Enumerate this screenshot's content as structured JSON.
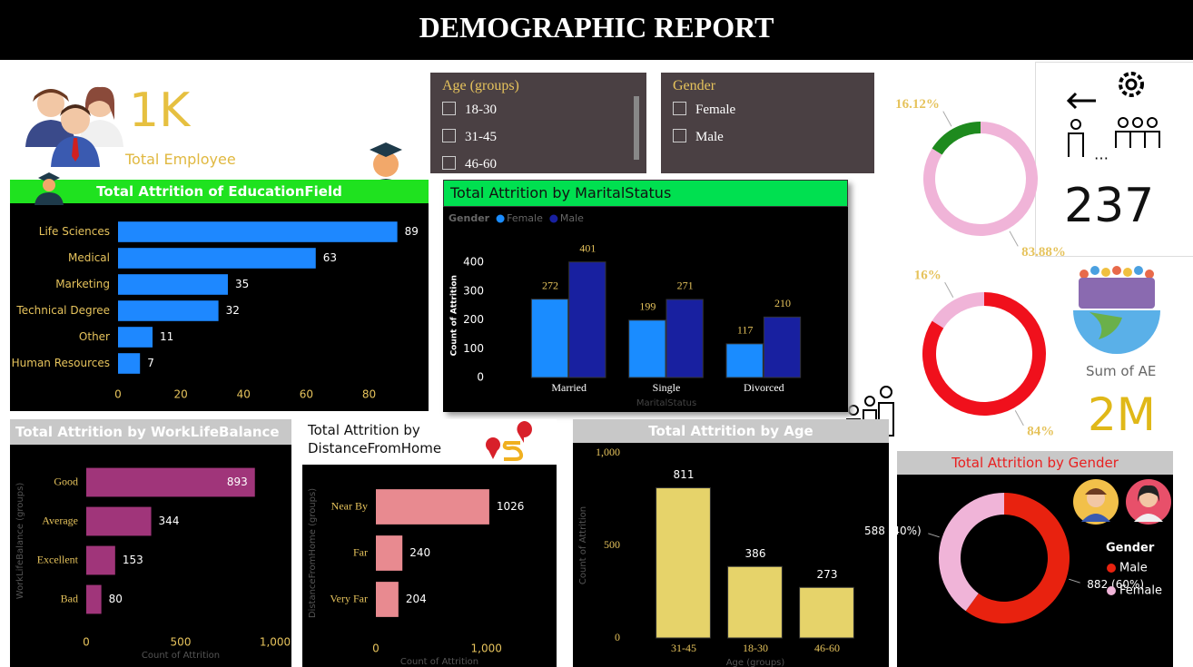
{
  "header": {
    "title": "DEMOGRAPHIC REPORT"
  },
  "kpis": [
    {
      "value": "1K",
      "label": "Total Employee"
    },
    {
      "value": "237"
    },
    {
      "value": "2M",
      "label": "Sum of AE"
    }
  ],
  "slicers": [
    {
      "title": "Age (groups)",
      "items": [
        "18-30",
        "31-45",
        "46-60"
      ]
    },
    {
      "title": "Gender",
      "items": [
        "Female",
        "Male"
      ]
    }
  ],
  "chart_data": [
    {
      "type": "bar",
      "orientation": "horizontal",
      "title": "Total Attrition of EducationField",
      "categories": [
        "Life Sciences",
        "Medical",
        "Marketing",
        "Technical Degree",
        "Other",
        "Human Resources"
      ],
      "values": [
        89,
        63,
        35,
        32,
        11,
        7
      ],
      "color": "#1e88ff",
      "xlim": [
        0,
        92
      ],
      "xticks": [
        0,
        20,
        40,
        60,
        80
      ]
    },
    {
      "type": "bar",
      "title": "Total Attrition by MaritalStatus",
      "legend_title": "Gender",
      "categories": [
        "Married",
        "Single",
        "Divorced"
      ],
      "series": [
        {
          "name": "Female",
          "color": "#1a8cff",
          "values": [
            272,
            199,
            117
          ]
        },
        {
          "name": "Male",
          "color": "#1820a0",
          "values": [
            401,
            271,
            210
          ]
        }
      ],
      "ylim": [
        0,
        430
      ],
      "yticks": [
        0,
        100,
        200,
        300,
        400
      ],
      "y_label": "Count of Attrition",
      "x_label": "MaritalStatus"
    },
    {
      "type": "bar",
      "orientation": "horizontal",
      "title": "Total Attrition by WorkLifeBalance",
      "categories": [
        "Good",
        "Average",
        "Excellent",
        "Bad"
      ],
      "values": [
        893,
        344,
        153,
        80
      ],
      "color": "#a0357a",
      "xlim": [
        0,
        1000
      ],
      "xticks": [
        0,
        500,
        {
          "value": 1000,
          "label": "1,000"
        }
      ],
      "x_label": "Count of Attrition",
      "y_label": "WorkLifeBalance (groups)"
    },
    {
      "type": "bar",
      "orientation": "horizontal",
      "title": "Total Attrition by DistanceFromHome",
      "categories": [
        "Near By",
        "Far",
        "Very Far"
      ],
      "values": [
        1026,
        240,
        204
      ],
      "color": "#e88a90",
      "xlim": [
        0,
        1150
      ],
      "xticks": [
        0,
        {
          "value": 1000,
          "label": "1,000"
        }
      ],
      "x_label": "Count of Attrition",
      "y_label": "DistanceFromHome (groups)"
    },
    {
      "type": "bar",
      "title": "Total Attrition by Age",
      "categories": [
        "31-45",
        "18-30",
        "46-60"
      ],
      "values": [
        811,
        386,
        273
      ],
      "color": "#e6d36a",
      "ylim": [
        0,
        1000
      ],
      "yticks": [
        0,
        500,
        {
          "value": 1000,
          "label": "1,000"
        }
      ],
      "y_label": "Count of Attrition",
      "x_label": "Age (groups)"
    },
    {
      "type": "donut",
      "title": "Total Attrition by Gender",
      "legend_title": "Gender",
      "categories": [
        "Male",
        "Female"
      ],
      "values": [
        882,
        588
      ],
      "value_labels": [
        "882 (60%)",
        "588 (40%)"
      ],
      "colors": [
        "#e8220f",
        "#f0b4d8"
      ]
    },
    {
      "type": "donut",
      "values": [
        16.12,
        83.88
      ],
      "value_labels": [
        "16.12%",
        "83.88%"
      ],
      "colors": [
        "#1e8a1e",
        "#f0b4d8"
      ]
    },
    {
      "type": "donut",
      "values": [
        16,
        84
      ],
      "value_labels": [
        "16%",
        "84%"
      ],
      "colors": [
        "#f0b4d8",
        "#f0101c"
      ]
    }
  ]
}
